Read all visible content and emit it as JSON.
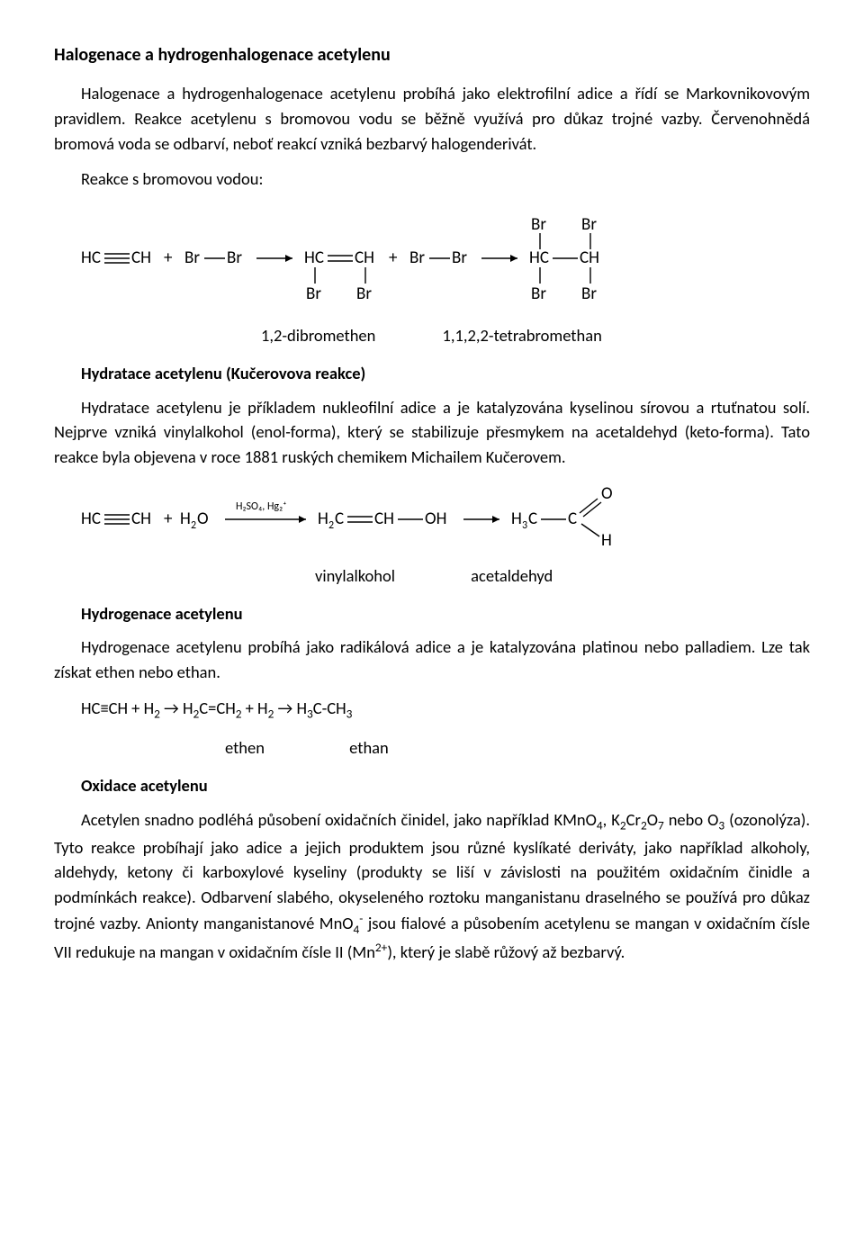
{
  "section1": {
    "title": "Halogenace a hydrogenhalogenace acetylenu",
    "p1": "Halogenace a hydrogenhalogenace acetylenu probíhá jako elektrofilní adice a řídí se Markovnikovovým pravidlem. Reakce acetylenu s bromovou vodu se běžně využívá pro důkaz trojné vazby. Červenohnědá bromová voda se odbarví, neboť reakcí vzniká bezbarvý halogenderivát.",
    "sub1": "Reakce s bromovou vodou:",
    "diagram1": {
      "reactant1": "HC",
      "reactant1b": "CH",
      "plus": "+",
      "br": "Br",
      "arrow": "→",
      "label_intermediate": "1,2-dibromethen",
      "label_product": "1,1,2,2-tetrabromethan"
    }
  },
  "section2": {
    "title": "Hydratace acetylenu (Kučerovova reakce)",
    "p1": "Hydratace acetylenu je příkladem nukleofilní adice a je katalyzována kyselinou sírovou a rtuťnatou solí. Nejprve vzniká vinylalkohol (enol-forma), který se stabilizuje přesmykem na acetaldehyd (keto-forma). Tato reakce byla objevena v roce 1881 ruských chemikem Michailem Kučerovem.",
    "diagram2": {
      "HC": "HC",
      "CH": "CH",
      "plus": "+",
      "H2O": "H",
      "H2O_sub": "2",
      "H2O_end": "O",
      "catalyst": "H₂SO₄, Hg₂⁺",
      "H2C": "H",
      "H2C_sub": "2",
      "H2C_end": "C",
      "CHmid": "CH",
      "OH": "OH",
      "H3C": "H",
      "H3C_sub": "3",
      "H3C_end": "C",
      "C": "C",
      "O": "O",
      "H": "H",
      "label_vinyl": "vinylalkohol",
      "label_acet": "acetaldehyd"
    }
  },
  "section3": {
    "title": "Hydrogenace acetylenu",
    "p1": "Hydrogenace acetylenu probíhá jako radikálová adice a je katalyzována platinou nebo palladiem. Lze tak získat ethen nebo ethan.",
    "eq": "HC≡CH + H₂ → H₂C=CH₂ + H₂ → H₃C-CH₃",
    "label_ethen": "ethen",
    "label_ethan": "ethan"
  },
  "section4": {
    "title": "Oxidace acetylenu",
    "p1_html": "Acetylen snadno podléhá působení oxidačních činidel, jako například KMnO<sub>4</sub>, K<sub>2</sub>Cr<sub>2</sub>O<sub>7</sub> nebo O<sub>3</sub> (ozonolýza). Tyto reakce probíhají jako adice a jejich produktem jsou různé kyslíkaté deriváty, jako například alkoholy, aldehydy, ketony či karboxylové kyseliny (produkty se liší v závislosti na použitém oxidačním činidle a podmínkách reakce). Odbarvení slabého, okyseleného roztoku manganistanu draselného se používá pro důkaz trojné vazby. Anionty manganistanové MnO<sub>4</sub><sup>-</sup> jsou fialové a působením acetylenu se mangan v oxidačním čísle VII redukuje na mangan v oxidačním čísle II (Mn<sup>2+</sup>), který je slabě růžový až bezbarvý."
  }
}
